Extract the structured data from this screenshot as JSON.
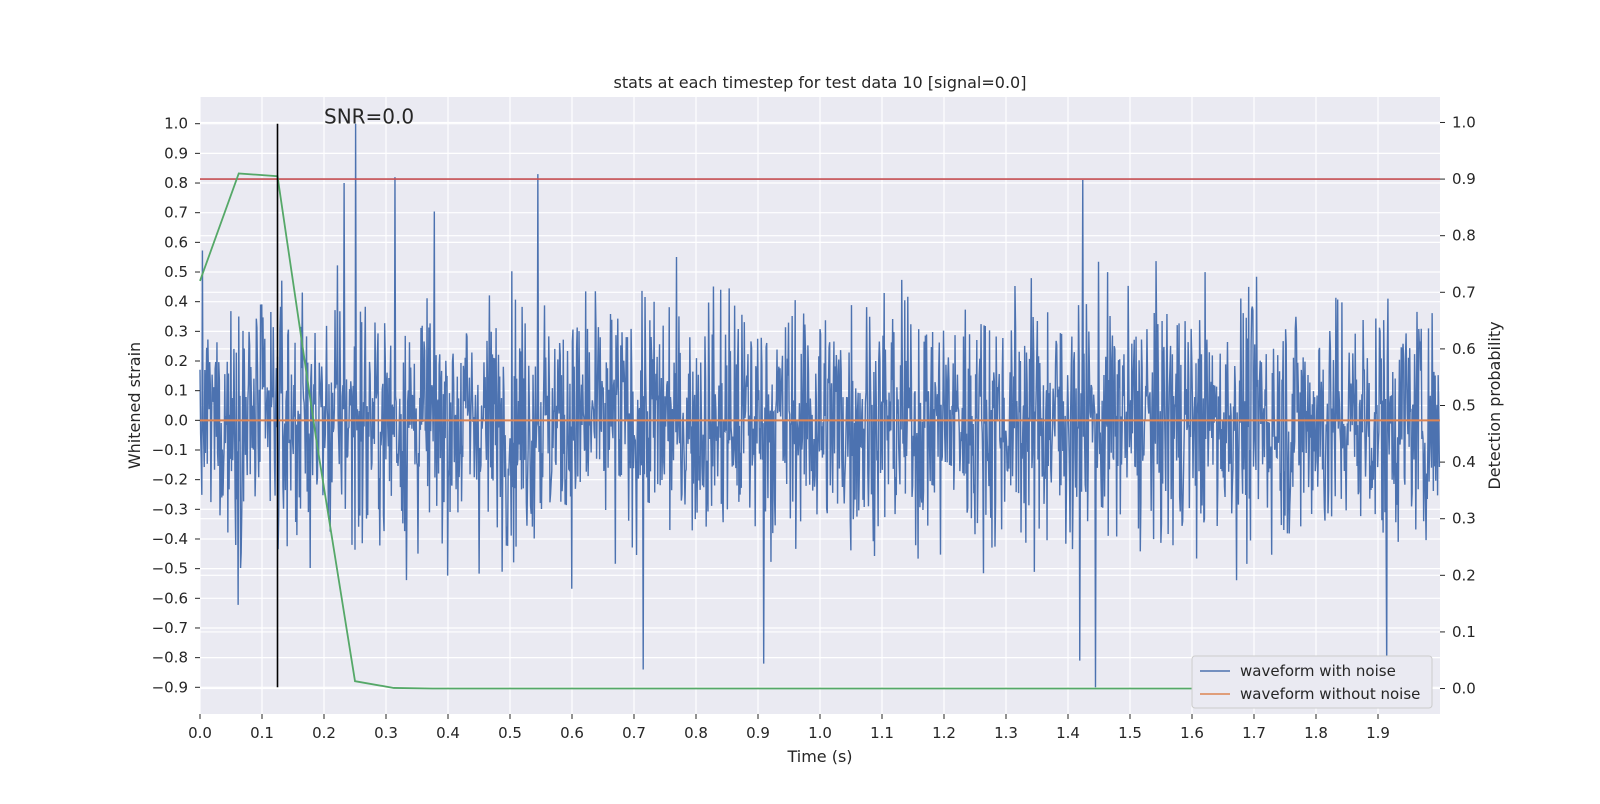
{
  "chart_data": {
    "type": "line",
    "title": "stats at each timestep for test data 10 [signal=0.0]",
    "xlabel": "Time (s)",
    "ylabel_left": "Whitened strain",
    "ylabel_right": "Detection probability",
    "xlim": [
      0.0,
      2.0
    ],
    "ylim_left": [
      -0.99,
      1.09
    ],
    "ylim_right": [
      -0.045,
      1.045
    ],
    "x_ticks": [
      0.0,
      0.1,
      0.2,
      0.3,
      0.4,
      0.5,
      0.6,
      0.7,
      0.8,
      0.9,
      1.0,
      1.1,
      1.2,
      1.3,
      1.4,
      1.5,
      1.6,
      1.7,
      1.8,
      1.9
    ],
    "x_tick_labels": [
      "0.0",
      "0.1",
      "0.2",
      "0.3",
      "0.4",
      "0.5",
      "0.6",
      "0.7",
      "0.8",
      "0.9",
      "1.0",
      "1.1",
      "1.2",
      "1.3",
      "1.4",
      "1.5",
      "1.6",
      "1.7",
      "1.8",
      "1.9"
    ],
    "y_left_ticks": [
      -0.9,
      -0.8,
      -0.7,
      -0.6,
      -0.5,
      -0.4,
      -0.3,
      -0.2,
      -0.1,
      0.0,
      0.1,
      0.2,
      0.3,
      0.4,
      0.5,
      0.6,
      0.7,
      0.8,
      0.9,
      1.0
    ],
    "y_left_tick_labels": [
      "−0.9",
      "−0.8",
      "−0.7",
      "−0.6",
      "−0.5",
      "−0.4",
      "−0.3",
      "−0.2",
      "−0.1",
      "0.0",
      "0.1",
      "0.2",
      "0.3",
      "0.4",
      "0.5",
      "0.6",
      "0.7",
      "0.8",
      "0.9",
      "1.0"
    ],
    "y_right_ticks": [
      0.0,
      0.1,
      0.2,
      0.3,
      0.4,
      0.5,
      0.6,
      0.7,
      0.8,
      0.9,
      1.0
    ],
    "y_right_tick_labels": [
      "0.0",
      "0.1",
      "0.2",
      "0.3",
      "0.4",
      "0.5",
      "0.6",
      "0.7",
      "0.8",
      "0.9",
      "1.0"
    ],
    "grid": true,
    "legend_placement": "lower-right",
    "series": [
      {
        "name": "waveform with noise",
        "color": "#4c72b0",
        "axis": "left",
        "x_range": [
          0.0,
          2.0
        ],
        "n_points": 2048,
        "y_min": -0.9,
        "y_max": 1.0,
        "notable_peaks": [
          {
            "x": 0.251,
            "y": 1.0
          },
          {
            "x": 0.545,
            "y": 0.83
          },
          {
            "x": 0.315,
            "y": 0.82
          },
          {
            "x": 1.425,
            "y": 0.81
          },
          {
            "x": 0.233,
            "y": 0.8
          },
          {
            "x": 1.445,
            "y": -0.9
          },
          {
            "x": 0.91,
            "y": -0.82
          },
          {
            "x": 0.715,
            "y": -0.84
          },
          {
            "x": 1.915,
            "y": -0.84
          },
          {
            "x": 1.42,
            "y": -0.81
          }
        ]
      },
      {
        "name": "waveform without noise",
        "color": "#dd8452",
        "axis": "left",
        "x": [
          0.0,
          2.0
        ],
        "y": [
          0.0,
          0.0
        ]
      },
      {
        "name": "",
        "color": "#55a868",
        "axis": "right",
        "x": [
          0.0,
          0.0625,
          0.125,
          0.1875,
          0.25,
          0.3125,
          0.375,
          0.4375,
          0.5,
          1.0,
          1.5,
          1.9375
        ],
        "y": [
          0.72,
          0.91,
          0.905,
          0.44,
          0.013,
          0.001,
          0.0,
          0.0,
          0.0,
          0.0,
          0.0,
          0.0
        ]
      }
    ],
    "threshold_line": {
      "axis": "right",
      "y": 0.9,
      "color": "#c44e52"
    },
    "marker_line": {
      "x": 0.125,
      "y_range_left": [
        -0.9,
        1.0
      ],
      "color": "#000000"
    },
    "annotations": [
      {
        "text": "SNR=0.0",
        "x": 0.2,
        "y": 1.0
      }
    ]
  }
}
